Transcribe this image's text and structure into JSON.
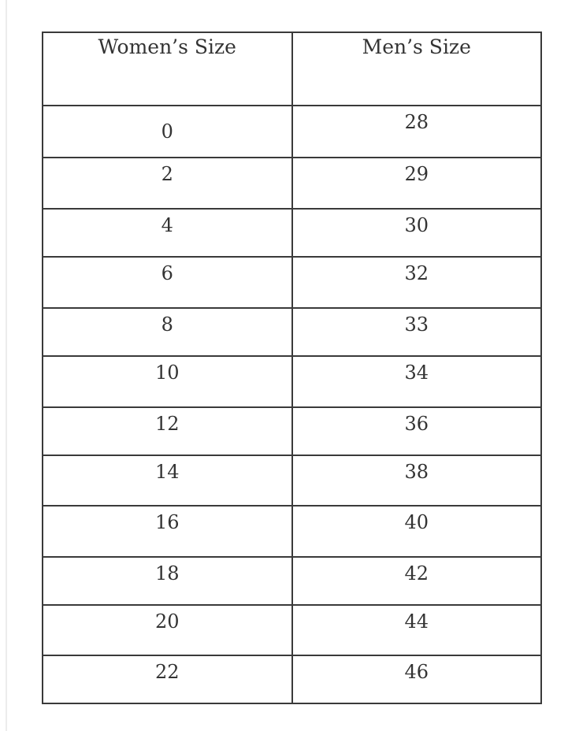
{
  "table": {
    "headers": [
      "Women’s Size",
      "Men’s Size"
    ],
    "rows": [
      [
        "0",
        "28"
      ],
      [
        "2",
        "29"
      ],
      [
        "4",
        "30"
      ],
      [
        "6",
        "32"
      ],
      [
        "8",
        "33"
      ],
      [
        "10",
        "34"
      ],
      [
        "12",
        "36"
      ],
      [
        "14",
        "38"
      ],
      [
        "16",
        "40"
      ],
      [
        "18",
        "42"
      ],
      [
        "20",
        "44"
      ],
      [
        "22",
        "46"
      ]
    ]
  }
}
